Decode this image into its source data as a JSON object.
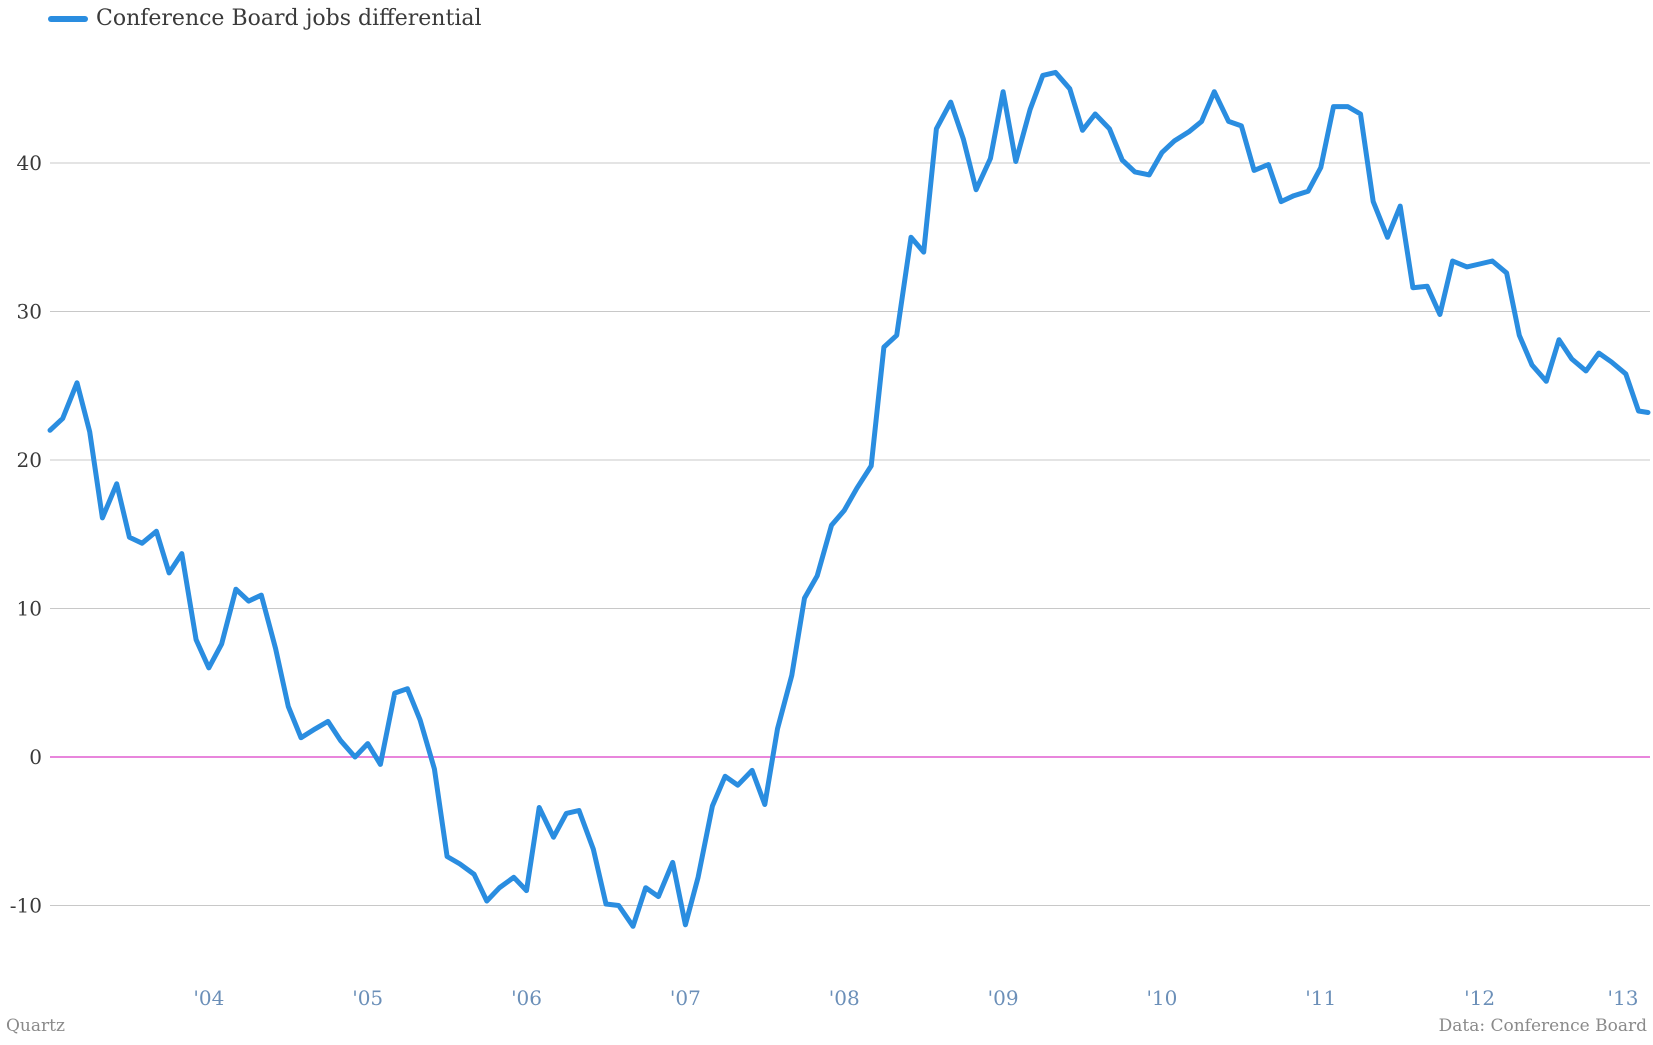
{
  "chart_data": {
    "type": "line",
    "title": "",
    "xlabel": "",
    "ylabel": "",
    "ylim": [
      -15,
      50
    ],
    "yticks": [
      -10,
      0,
      10,
      20,
      30,
      40
    ],
    "ytick_labels": [
      "-10",
      "0",
      "10",
      "20",
      "30",
      "40"
    ],
    "xticks": [
      2004,
      2005,
      2006,
      2007,
      2008,
      2009,
      2010,
      2011,
      2012,
      2013
    ],
    "xtick_labels": [
      "'04",
      "'05",
      "'06",
      "'07",
      "'08",
      "'09",
      "'10",
      "'11",
      "'12",
      "'13"
    ],
    "xlim": [
      2003.0,
      2013.06
    ],
    "grid": true,
    "zero_line": true,
    "legend_position": "top-left",
    "series": [
      {
        "name": "Conference Board jobs differential",
        "color": "#2a8de0",
        "x": [
          2003.0,
          2003.08,
          2003.17,
          2003.25,
          2003.33,
          2003.42,
          2003.5,
          2003.58,
          2003.67,
          2003.75,
          2003.83,
          2003.92,
          2004.0,
          2004.08,
          2004.17,
          2004.25,
          2004.33,
          2004.42,
          2004.5,
          2004.58,
          2004.67,
          2004.75,
          2004.83,
          2004.92,
          2005.0,
          2005.08,
          2005.17,
          2005.25,
          2005.33,
          2005.42,
          2005.5,
          2005.58,
          2005.67,
          2005.75,
          2005.83,
          2005.92,
          2006.0,
          2006.08,
          2006.17,
          2006.25,
          2006.33,
          2006.42,
          2006.5,
          2006.58,
          2006.67,
          2006.75,
          2006.83,
          2006.92,
          2007.0,
          2007.08,
          2007.17,
          2007.25,
          2007.33,
          2007.42,
          2007.5,
          2007.58,
          2007.67,
          2007.75,
          2007.83,
          2007.92,
          2008.0,
          2008.08,
          2008.17,
          2008.25,
          2008.33,
          2008.42,
          2008.5,
          2008.58,
          2008.67,
          2008.75,
          2008.83,
          2008.92,
          2009.0,
          2009.08,
          2009.17,
          2009.25,
          2009.33,
          2009.42,
          2009.5,
          2009.58,
          2009.67,
          2009.75,
          2009.83,
          2009.92,
          2010.0,
          2010.08,
          2010.17,
          2010.25,
          2010.33,
          2010.42,
          2010.5,
          2010.58,
          2010.67,
          2010.75,
          2010.83,
          2010.92,
          2011.0,
          2011.08,
          2011.17,
          2011.25,
          2011.33,
          2011.42,
          2011.5,
          2011.58,
          2011.67,
          2011.75,
          2011.83,
          2011.92,
          2012.0,
          2012.08,
          2012.17,
          2012.25,
          2012.33,
          2012.42,
          2012.5,
          2012.58,
          2012.67,
          2012.75,
          2012.83,
          2012.92,
          2013.0,
          2013.06
        ],
        "y": [
          22.0,
          22.8,
          25.2,
          21.9,
          16.1,
          18.4,
          14.8,
          14.4,
          15.2,
          12.4,
          13.7,
          7.9,
          6.0,
          7.6,
          11.3,
          10.5,
          10.9,
          7.3,
          3.4,
          1.3,
          1.9,
          2.4,
          1.1,
          0.0,
          0.9,
          -0.5,
          4.3,
          4.6,
          2.5,
          -0.8,
          -6.7,
          -7.2,
          -7.9,
          -9.7,
          -8.8,
          -8.1,
          -9.0,
          -3.4,
          -5.4,
          -3.8,
          -3.6,
          -6.2,
          -9.9,
          -10.0,
          -11.4,
          -8.8,
          -9.4,
          -7.1,
          -11.3,
          -8.1,
          -3.3,
          -1.3,
          -1.9,
          -0.9,
          -3.2,
          1.9,
          5.5,
          10.7,
          12.2,
          15.6,
          16.6,
          18.1,
          19.6,
          27.6,
          28.4,
          35.0,
          34.0,
          42.3,
          44.1,
          41.6,
          38.2,
          40.3,
          44.8,
          40.1,
          43.6,
          45.9,
          46.1,
          45.0,
          42.2,
          43.3,
          42.3,
          40.2,
          39.4,
          39.2,
          40.7,
          41.5,
          42.1,
          42.8,
          44.8,
          42.8,
          42.5,
          39.5,
          39.9,
          37.4,
          37.8,
          38.1,
          39.7,
          43.8,
          43.8,
          43.3,
          37.4,
          35.0,
          37.1,
          31.6,
          31.7,
          29.8,
          33.4,
          33.0,
          33.2,
          33.4,
          32.6,
          28.4,
          26.4,
          25.3,
          28.1,
          26.8,
          26.0,
          27.2,
          26.6,
          25.8,
          23.3,
          23.2
        ]
      }
    ]
  },
  "legend": {
    "label": "Conference Board jobs differential"
  },
  "footer": {
    "source_left": "Quartz",
    "source_right": "Data: Conference Board"
  }
}
